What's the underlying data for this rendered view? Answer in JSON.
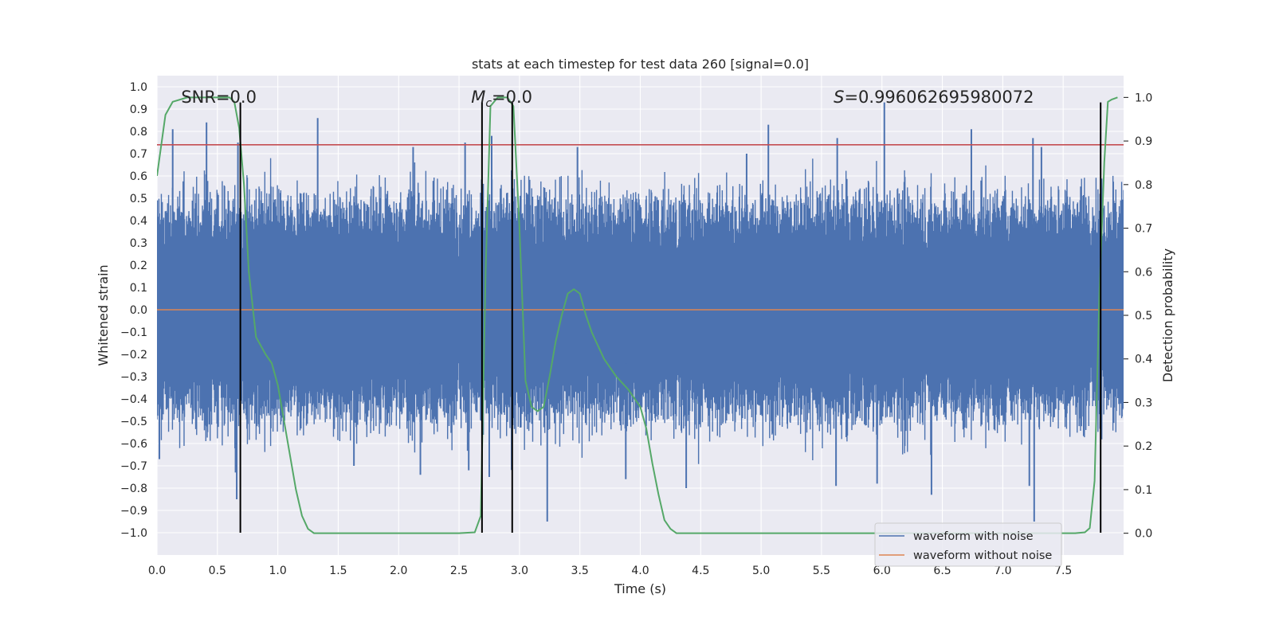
{
  "chart_data": {
    "type": "line",
    "title": "stats at each timestep for test data 260 [signal=0.0]",
    "xlabel": "Time (s)",
    "ylabel": "Whitened strain",
    "y2label": "Detection probability",
    "xlim": [
      0.0,
      8.0
    ],
    "ylim": [
      -1.1,
      1.05
    ],
    "y2lim": [
      -0.05,
      1.05
    ],
    "x_ticks": [
      0.0,
      0.5,
      1.0,
      1.5,
      2.0,
      2.5,
      3.0,
      3.5,
      4.0,
      4.5,
      5.0,
      5.5,
      6.0,
      6.5,
      7.0,
      7.5
    ],
    "x_tick_labels": [
      "0.0",
      "0.5",
      "1.0",
      "1.5",
      "2.0",
      "2.5",
      "3.0",
      "3.5",
      "4.0",
      "4.5",
      "5.0",
      "5.5",
      "6.0",
      "6.5",
      "7.0",
      "7.5"
    ],
    "y_ticks": [
      1.0,
      0.9,
      0.8,
      0.7,
      0.6,
      0.5,
      0.4,
      0.3,
      0.2,
      0.1,
      0.0,
      -0.1,
      -0.2,
      -0.3,
      -0.4,
      -0.5,
      -0.6,
      -0.7,
      -0.8,
      -0.9,
      -1.0
    ],
    "y_tick_labels": [
      "1.0",
      "0.9",
      "0.8",
      "0.7",
      "0.6",
      "0.5",
      "0.4",
      "0.3",
      "0.2",
      "0.1",
      "0.0",
      "−0.1",
      "−0.2",
      "−0.3",
      "−0.4",
      "−0.5",
      "−0.6",
      "−0.7",
      "−0.8",
      "−0.9",
      "−1.0"
    ],
    "y2_ticks": [
      1.0,
      0.9,
      0.8,
      0.7,
      0.6,
      0.5,
      0.4,
      0.3,
      0.2,
      0.1,
      0.0
    ],
    "y2_tick_labels": [
      "1.0",
      "0.9",
      "0.8",
      "0.7",
      "0.6",
      "0.5",
      "0.4",
      "0.3",
      "0.2",
      "0.1",
      "0.0"
    ],
    "grid": true,
    "legend_position": "lower-right",
    "series": [
      {
        "name": "waveform with noise",
        "color": "#4c72b0",
        "kind": "noise-band",
        "envelope_typical": [
          -0.43,
          0.43
        ],
        "upper_spikes": [
          [
            0.13,
            0.81
          ],
          [
            0.41,
            0.84
          ],
          [
            0.67,
            0.75
          ],
          [
            1.33,
            0.86
          ],
          [
            2.12,
            0.73
          ],
          [
            2.55,
            0.75
          ],
          [
            2.77,
            0.78
          ],
          [
            3.48,
            0.73
          ],
          [
            4.88,
            0.7
          ],
          [
            5.06,
            0.83
          ],
          [
            5.63,
            0.77
          ],
          [
            6.02,
            0.93
          ],
          [
            6.74,
            0.81
          ],
          [
            7.25,
            0.77
          ],
          [
            7.32,
            0.73
          ]
        ],
        "lower_spikes": [
          [
            0.02,
            -0.67
          ],
          [
            0.65,
            -0.73
          ],
          [
            0.66,
            -0.85
          ],
          [
            1.63,
            -0.7
          ],
          [
            2.18,
            -0.74
          ],
          [
            2.58,
            -0.72
          ],
          [
            2.75,
            -0.75
          ],
          [
            3.23,
            -0.95
          ],
          [
            3.88,
            -0.76
          ],
          [
            4.38,
            -0.8
          ],
          [
            5.62,
            -0.79
          ],
          [
            5.96,
            -0.78
          ],
          [
            6.41,
            -0.83
          ],
          [
            7.22,
            -0.79
          ],
          [
            7.26,
            -0.95
          ]
        ]
      },
      {
        "name": "waveform without noise",
        "color": "#dd8452",
        "kind": "constant",
        "y": 0.0
      },
      {
        "name": "",
        "color": "#55a868",
        "kind": "probability",
        "axis": "right",
        "x": [
          0.0,
          0.07,
          0.13,
          0.25,
          0.4,
          0.5,
          0.6,
          0.64,
          0.68,
          0.72,
          0.76,
          0.82,
          0.9,
          0.95,
          1.0,
          1.05,
          1.1,
          1.15,
          1.2,
          1.25,
          1.3,
          1.5,
          2.0,
          2.5,
          2.63,
          2.68,
          2.72,
          2.76,
          2.82,
          2.9,
          2.95,
          3.0,
          3.05,
          3.1,
          3.15,
          3.2,
          3.25,
          3.3,
          3.35,
          3.4,
          3.45,
          3.5,
          3.55,
          3.6,
          3.7,
          3.8,
          3.9,
          4.0,
          4.05,
          4.1,
          4.15,
          4.2,
          4.25,
          4.3,
          4.5,
          5.0,
          6.0,
          7.0,
          7.6,
          7.68,
          7.72,
          7.76,
          7.8,
          7.84,
          7.87,
          7.9,
          7.95
        ],
        "y": [
          0.82,
          0.96,
          0.99,
          1.0,
          1.0,
          1.0,
          1.0,
          0.99,
          0.93,
          0.8,
          0.6,
          0.45,
          0.41,
          0.39,
          0.34,
          0.26,
          0.18,
          0.1,
          0.04,
          0.01,
          0.0,
          0.0,
          0.0,
          0.0,
          0.002,
          0.04,
          0.6,
          0.98,
          1.0,
          1.0,
          0.98,
          0.7,
          0.35,
          0.29,
          0.28,
          0.29,
          0.36,
          0.44,
          0.5,
          0.55,
          0.56,
          0.55,
          0.5,
          0.46,
          0.4,
          0.36,
          0.33,
          0.29,
          0.24,
          0.16,
          0.09,
          0.03,
          0.01,
          0.0,
          0.0,
          0.0,
          0.0,
          0.0,
          0.0,
          0.002,
          0.012,
          0.12,
          0.55,
          0.85,
          0.99,
          0.995,
          1.0
        ]
      }
    ],
    "threshold_line": {
      "y": 0.74,
      "color": "#c44e52"
    },
    "vertical_lines": [
      0.69,
      2.69,
      2.94,
      7.81
    ],
    "vertical_line_range": [
      -1.0,
      0.93
    ],
    "annotations": [
      {
        "text": "SNR=0.0",
        "x": 0.2,
        "y": 0.95
      },
      {
        "text": "M",
        "sub": "c",
        "suffix": "=0.0",
        "x": 2.6,
        "y": 0.95
      },
      {
        "text": "S",
        "suffix": "=0.996062695980072",
        "x": 5.6,
        "y": 0.95
      }
    ]
  }
}
